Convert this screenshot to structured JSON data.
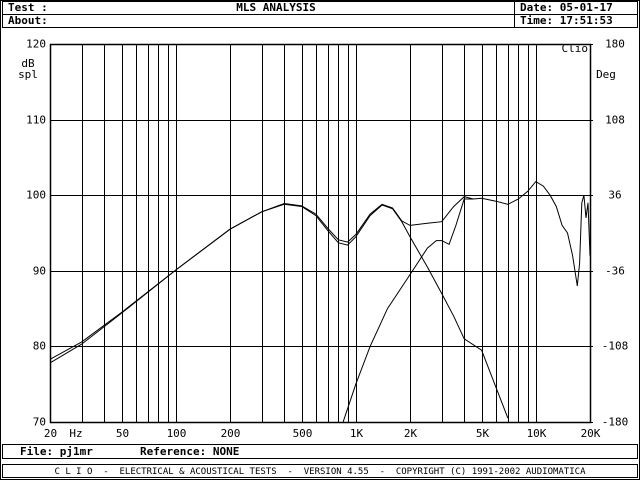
{
  "header": {
    "test_label": "Test :",
    "about_label": "About:",
    "title": "MLS ANALYSIS",
    "date": "Date: 05-01-17",
    "time": "Time: 17:51:53"
  },
  "chart_data": {
    "type": "line",
    "xscale": "log",
    "grid": true,
    "brand": "Clio",
    "xlim": [
      20,
      20000
    ],
    "ylim": [
      70,
      120
    ],
    "y2lim": [
      -180,
      180
    ],
    "xticks": [
      20,
      50,
      100,
      200,
      500,
      {
        "value": 1000,
        "label": "1K"
      },
      {
        "value": 2000,
        "label": "2K"
      },
      {
        "value": 5000,
        "label": "5K"
      },
      {
        "value": 10000,
        "label": "10K"
      },
      {
        "value": 20000,
        "label": "20K"
      }
    ],
    "xminor": [
      30,
      40,
      60,
      70,
      80,
      90,
      300,
      400,
      600,
      700,
      800,
      900,
      3000,
      4000,
      6000,
      7000,
      8000,
      9000
    ],
    "yticks": [
      70,
      80,
      90,
      100,
      110,
      120
    ],
    "y2ticks": [
      -180,
      -108,
      -36,
      36,
      108,
      180
    ],
    "xlabel": "Hz",
    "ylabel": [
      "dB",
      "spl"
    ],
    "y2label": "Deg",
    "series": [
      {
        "color": "#000000",
        "x": [
          20,
          30,
          50,
          100,
          200,
          300,
          400,
          500,
          600,
          700,
          800,
          900,
          1000,
          1200,
          1400,
          1600,
          1800,
          2000,
          2500,
          3000,
          3500,
          4000,
          4500,
          5000,
          6000,
          7000,
          8000,
          9000,
          10000,
          11000,
          12000,
          13000,
          14000,
          15000,
          16000,
          17000,
          17500,
          18000,
          18500,
          19000,
          19500,
          20000
        ],
        "values": [
          77.8,
          80.3,
          84.4,
          90.1,
          95.5,
          97.8,
          98.9,
          98.6,
          97.5,
          95.6,
          94.1,
          93.8,
          94.8,
          97.5,
          98.8,
          98.3,
          96.6,
          96.0,
          96.3,
          96.5,
          98.5,
          99.8,
          99.5,
          99.6,
          99.2,
          98.8,
          99.5,
          100.5,
          101.8,
          101.2,
          100.0,
          98.5,
          96.0,
          95.0,
          92.0,
          88.0,
          91.0,
          99.0,
          100.0,
          97.0,
          99.0,
          92.0
        ]
      },
      {
        "color": "#000000",
        "x": [
          20,
          30,
          50,
          100,
          200,
          300,
          400,
          500,
          600,
          700,
          800,
          900,
          1000,
          1200,
          1400,
          1600,
          1800,
          2000,
          2500,
          3000,
          3500,
          4000,
          5000,
          7000
        ],
        "values": [
          78.3,
          80.6,
          84.5,
          90.1,
          95.5,
          97.8,
          98.8,
          98.5,
          97.3,
          95.3,
          93.7,
          93.4,
          94.5,
          97.3,
          98.7,
          98.2,
          96.5,
          94.5,
          90.5,
          87.0,
          84.0,
          81.0,
          79.5,
          70.5
        ]
      },
      {
        "color": "#000000",
        "x": [
          850,
          1000,
          1200,
          1500,
          2000,
          2500,
          2800,
          3000,
          3300,
          3600,
          4000,
          4500
        ],
        "values": [
          70.0,
          75.0,
          80.0,
          85.0,
          89.5,
          93.0,
          94.0,
          94.0,
          93.5,
          96.0,
          99.5,
          99.5
        ]
      }
    ]
  },
  "footer": {
    "file": "File: pj1mr",
    "reference": "Reference: NONE",
    "banner": "C L I O  -  ELECTRICAL & ACOUSTICAL TESTS  -  VERSION 4.55  -  COPYRIGHT (C) 1991-2002 AUDIOMATICA"
  }
}
